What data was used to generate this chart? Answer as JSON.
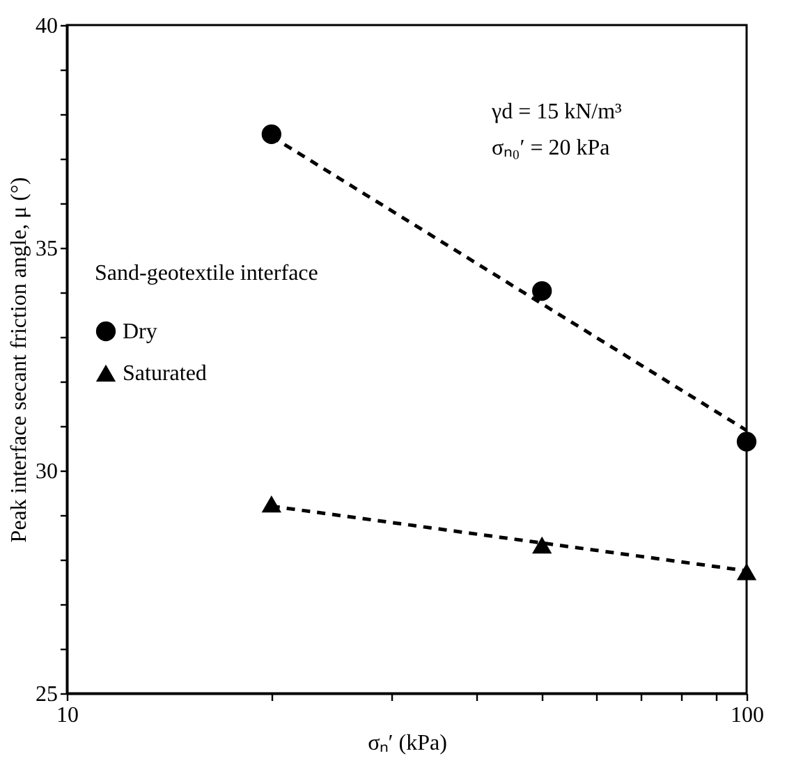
{
  "chart_data": {
    "type": "scatter",
    "xlabel": "σₙ′ (kPa)",
    "ylabel": "Peak interface secant friction angle, μ (°)",
    "legend_title": "Sand-geotextile interface",
    "legend": "left",
    "log": "x",
    "grid": false,
    "xlim": [
      10,
      100
    ],
    "ylim": [
      25,
      40
    ],
    "xticks": [
      10,
      {
        "value": 20,
        "label": null
      },
      {
        "value": 30,
        "label": null
      },
      {
        "value": 40,
        "label": null
      },
      {
        "value": 50,
        "label": null
      },
      {
        "value": 60,
        "label": null
      },
      {
        "value": 70,
        "label": null
      },
      {
        "value": 80,
        "label": null
      },
      {
        "value": 90,
        "label": null
      },
      100
    ],
    "yticks": [
      25,
      {
        "value": 26,
        "label": null
      },
      {
        "value": 27,
        "label": null
      },
      {
        "value": 28,
        "label": null
      },
      {
        "value": 29,
        "label": null
      },
      30,
      {
        "value": 31,
        "label": null
      },
      {
        "value": 32,
        "label": null
      },
      {
        "value": 33,
        "label": null
      },
      {
        "value": 34,
        "label": null
      },
      35,
      {
        "value": 36,
        "label": null
      },
      {
        "value": 37,
        "label": null
      },
      {
        "value": 38,
        "label": null
      },
      {
        "value": 39,
        "label": null
      },
      40
    ],
    "annotations": [
      "γd = 15 kN/m³",
      "σₙ₀′ = 20 kPa"
    ],
    "series": [
      {
        "name": "Dry",
        "type": "scatter",
        "marker": "circle",
        "color": "#000000",
        "x": [
          20,
          50,
          100
        ],
        "values": [
          37.55,
          34.03,
          30.65
        ]
      },
      {
        "name": "Saturated",
        "type": "scatter",
        "marker": "triangle",
        "color": "#000000",
        "x": [
          20,
          50,
          100
        ],
        "values": [
          29.25,
          28.33,
          27.73
        ]
      },
      {
        "type": "line",
        "line_style": "dashed",
        "marker": "none",
        "color": "#000000",
        "x": [
          20,
          100
        ],
        "values": [
          37.5,
          30.9
        ]
      },
      {
        "type": "line",
        "line_style": "dashed",
        "marker": "none",
        "color": "#000000",
        "x": [
          20,
          100
        ],
        "values": [
          29.2,
          27.75
        ]
      }
    ]
  }
}
